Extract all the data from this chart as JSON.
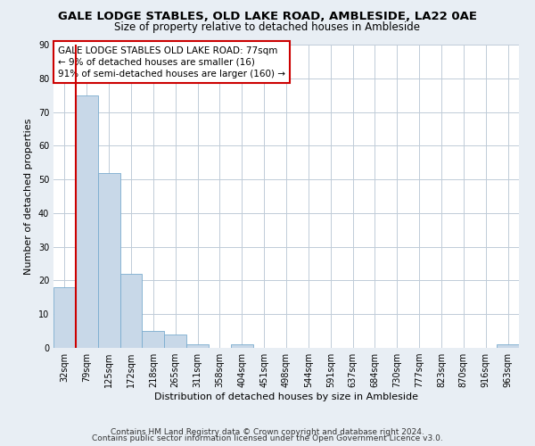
{
  "title": "GALE LODGE STABLES, OLD LAKE ROAD, AMBLESIDE, LA22 0AE",
  "subtitle": "Size of property relative to detached houses in Ambleside",
  "xlabel": "Distribution of detached houses by size in Ambleside",
  "ylabel": "Number of detached properties",
  "bin_labels": [
    "32sqm",
    "79sqm",
    "125sqm",
    "172sqm",
    "218sqm",
    "265sqm",
    "311sqm",
    "358sqm",
    "404sqm",
    "451sqm",
    "498sqm",
    "544sqm",
    "591sqm",
    "637sqm",
    "684sqm",
    "730sqm",
    "777sqm",
    "823sqm",
    "870sqm",
    "916sqm",
    "963sqm"
  ],
  "bar_heights": [
    18,
    75,
    52,
    22,
    5,
    4,
    1,
    0,
    1,
    0,
    0,
    0,
    0,
    0,
    0,
    0,
    0,
    0,
    0,
    0,
    1
  ],
  "bar_color": "#c8d8e8",
  "bar_edge_color": "#7aaccf",
  "marker_color": "#cc0000",
  "ylim": [
    0,
    90
  ],
  "yticks": [
    0,
    10,
    20,
    30,
    40,
    50,
    60,
    70,
    80,
    90
  ],
  "annotation_title": "GALE LODGE STABLES OLD LAKE ROAD: 77sqm",
  "annotation_line2": "← 9% of detached houses are smaller (16)",
  "annotation_line3": "91% of semi-detached houses are larger (160) →",
  "annotation_box_color": "#ffffff",
  "annotation_border_color": "#cc0000",
  "footer1": "Contains HM Land Registry data © Crown copyright and database right 2024.",
  "footer2": "Contains public sector information licensed under the Open Government Licence v3.0.",
  "bg_color": "#e8eef4",
  "plot_bg_color": "#ffffff",
  "grid_color": "#c0ccd8",
  "title_fontsize": 9.5,
  "subtitle_fontsize": 8.5,
  "axis_label_fontsize": 8,
  "tick_fontsize": 7,
  "annotation_fontsize": 7.5,
  "footer_fontsize": 6.5
}
